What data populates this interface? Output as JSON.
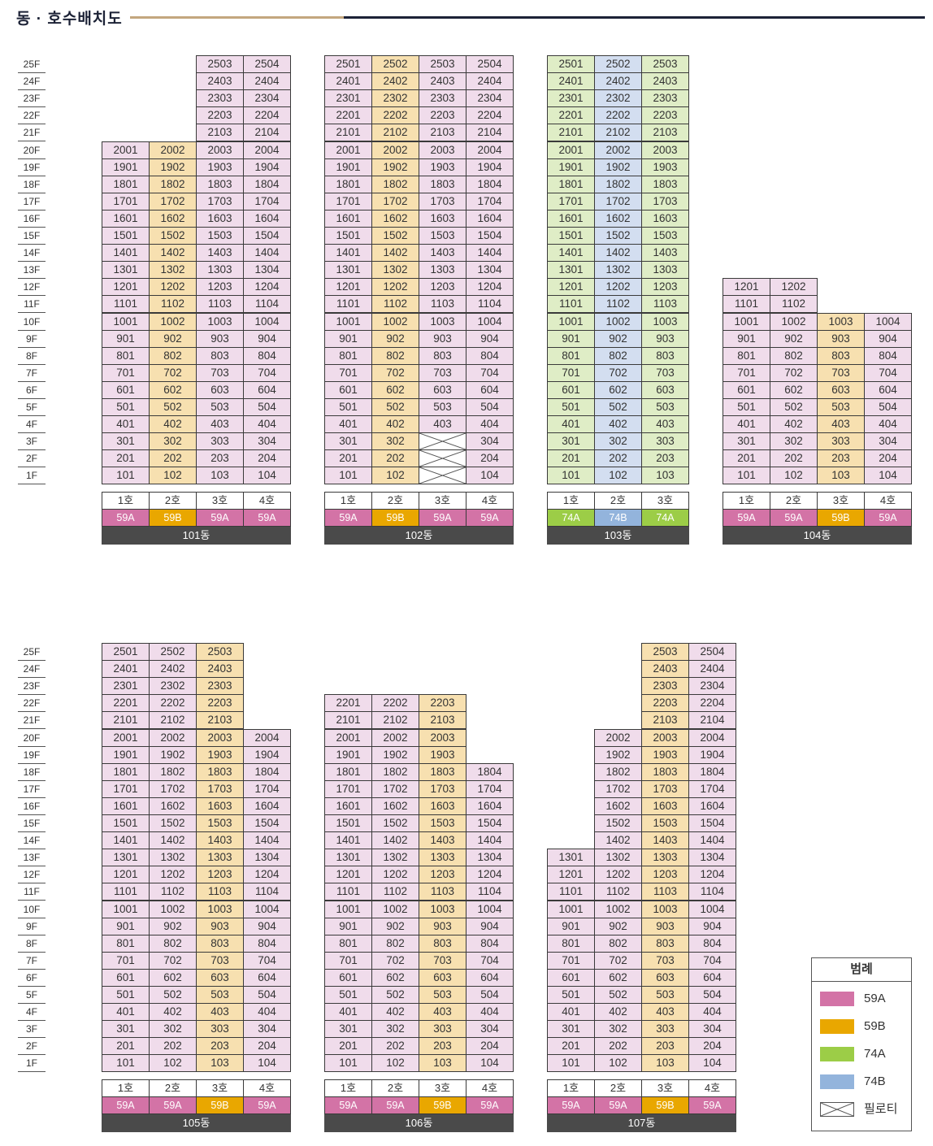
{
  "title": "동 · 호수배치도",
  "colors": {
    "59A": "#f0dceb",
    "59B": "#f7e0b0",
    "74A": "#dfedc6",
    "74B": "#d3def0",
    "tag_59A": "#d373a6",
    "tag_59B": "#e9a700",
    "tag_74A": "#9ccd47",
    "tag_74B": "#93b4dc",
    "dong_bar": "#4a4a4a"
  },
  "floor_labels": [
    "25F",
    "24F",
    "23F",
    "22F",
    "21F",
    "20F",
    "19F",
    "18F",
    "17F",
    "16F",
    "15F",
    "14F",
    "13F",
    "12F",
    "11F",
    "10F",
    "9F",
    "8F",
    "7F",
    "6F",
    "5F",
    "4F",
    "3F",
    "2F",
    "1F"
  ],
  "buildings": [
    {
      "name": "101동",
      "units": [
        {
          "ho": "1호",
          "type": "59A",
          "top": 20
        },
        {
          "ho": "2호",
          "type": "59B",
          "top": 20
        },
        {
          "ho": "3호",
          "type": "59A",
          "top": 25
        },
        {
          "ho": "4호",
          "type": "59A",
          "top": 25
        }
      ]
    },
    {
      "name": "102동",
      "units": [
        {
          "ho": "1호",
          "type": "59A",
          "top": 25
        },
        {
          "ho": "2호",
          "type": "59B",
          "top": 25
        },
        {
          "ho": "3호",
          "type": "59A",
          "top": 25,
          "pilotis": [
            1,
            2,
            3
          ]
        },
        {
          "ho": "4호",
          "type": "59A",
          "top": 25
        }
      ]
    },
    {
      "name": "103동",
      "units": [
        {
          "ho": "1호",
          "type": "74A",
          "top": 25
        },
        {
          "ho": "2호",
          "type": "74B",
          "top": 25
        },
        {
          "ho": "3호",
          "type": "74A",
          "top": 25
        }
      ]
    },
    {
      "name": "104동",
      "units": [
        {
          "ho": "1호",
          "type": "59A",
          "top": 12
        },
        {
          "ho": "2호",
          "type": "59A",
          "top": 12
        },
        {
          "ho": "3호",
          "type": "59B",
          "top": 10
        },
        {
          "ho": "4호",
          "type": "59A",
          "top": 10
        }
      ]
    },
    {
      "name": "105동",
      "units": [
        {
          "ho": "1호",
          "type": "59A",
          "top": 25
        },
        {
          "ho": "2호",
          "type": "59A",
          "top": 25
        },
        {
          "ho": "3호",
          "type": "59B",
          "top": 25
        },
        {
          "ho": "4호",
          "type": "59A",
          "top": 20
        }
      ]
    },
    {
      "name": "106동",
      "units": [
        {
          "ho": "1호",
          "type": "59A",
          "top": 22
        },
        {
          "ho": "2호",
          "type": "59A",
          "top": 22
        },
        {
          "ho": "3호",
          "type": "59B",
          "top": 22
        },
        {
          "ho": "4호",
          "type": "59A",
          "top": 18
        }
      ]
    },
    {
      "name": "107동",
      "units": [
        {
          "ho": "1호",
          "type": "59A",
          "top": 13
        },
        {
          "ho": "2호",
          "type": "59A",
          "top": 20
        },
        {
          "ho": "3호",
          "type": "59B",
          "top": 25
        },
        {
          "ho": "4호",
          "type": "59A",
          "top": 25
        }
      ]
    }
  ],
  "legend": {
    "title": "범례",
    "items": [
      {
        "label": "59A",
        "color": "#d373a6"
      },
      {
        "label": "59B",
        "color": "#e9a700"
      },
      {
        "label": "74A",
        "color": "#9ccd47"
      },
      {
        "label": "74B",
        "color": "#93b4dc"
      },
      {
        "label": "필로티",
        "pattern": "cross"
      }
    ]
  }
}
